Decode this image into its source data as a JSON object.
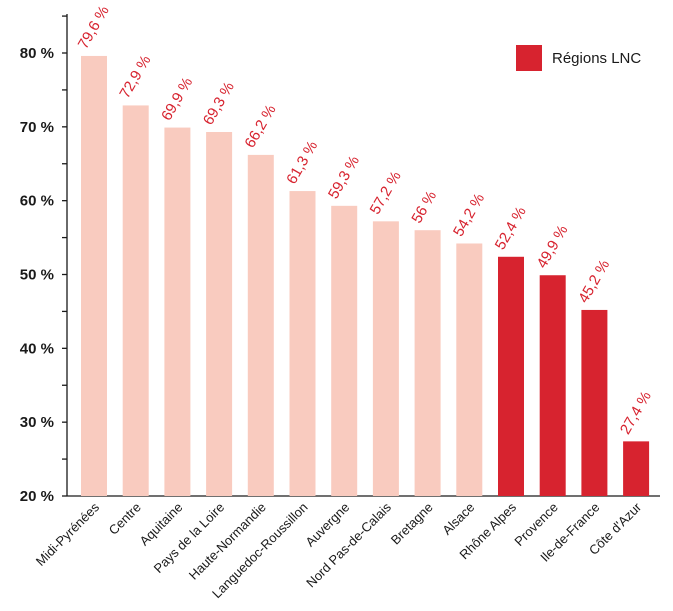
{
  "chart_data": {
    "type": "bar",
    "categories": [
      "Midi-Pyrénées",
      "Centre",
      "Aquitaine",
      "Pays de la Loire",
      "Haute-Normandie",
      "Languedoc-Roussillon",
      "Auvergne",
      "Nord Pas-de-Calais",
      "Bretagne",
      "Alsace",
      "Rhône Alpes",
      "Provence",
      "Ile-de-France",
      "Côte d'Azur"
    ],
    "values": [
      79.6,
      72.9,
      69.9,
      69.3,
      66.2,
      61.3,
      59.3,
      57.2,
      56,
      54.2,
      52.4,
      49.9,
      45.2,
      27.4
    ],
    "value_labels": [
      "79,6 %",
      "72,9 %",
      "69,9 %",
      "69,3 %",
      "66,2 %",
      "61,3 %",
      "59,3 %",
      "57,2 %",
      "56 %",
      "54,2 %",
      "52,4 %",
      "49,9 %",
      "45,2 %",
      "27,4 %"
    ],
    "lnc": [
      false,
      false,
      false,
      false,
      false,
      false,
      false,
      false,
      false,
      false,
      true,
      true,
      true,
      true
    ],
    "ylim": [
      20,
      85
    ],
    "yticks": [
      20,
      30,
      40,
      50,
      60,
      70,
      80
    ],
    "ytick_labels": [
      "20 %",
      "30 %",
      "40 %",
      "50 %",
      "60 %",
      "70 %",
      "80 %"
    ],
    "title": "",
    "xlabel": "",
    "ylabel": "",
    "legend": {
      "label": "Régions LNC",
      "position": "top-right"
    },
    "colors": {
      "default_bar": "#f9cbbf",
      "lnc_bar": "#d7232f",
      "value_label": "#d7232f",
      "axis": "#1a1a1a"
    }
  }
}
